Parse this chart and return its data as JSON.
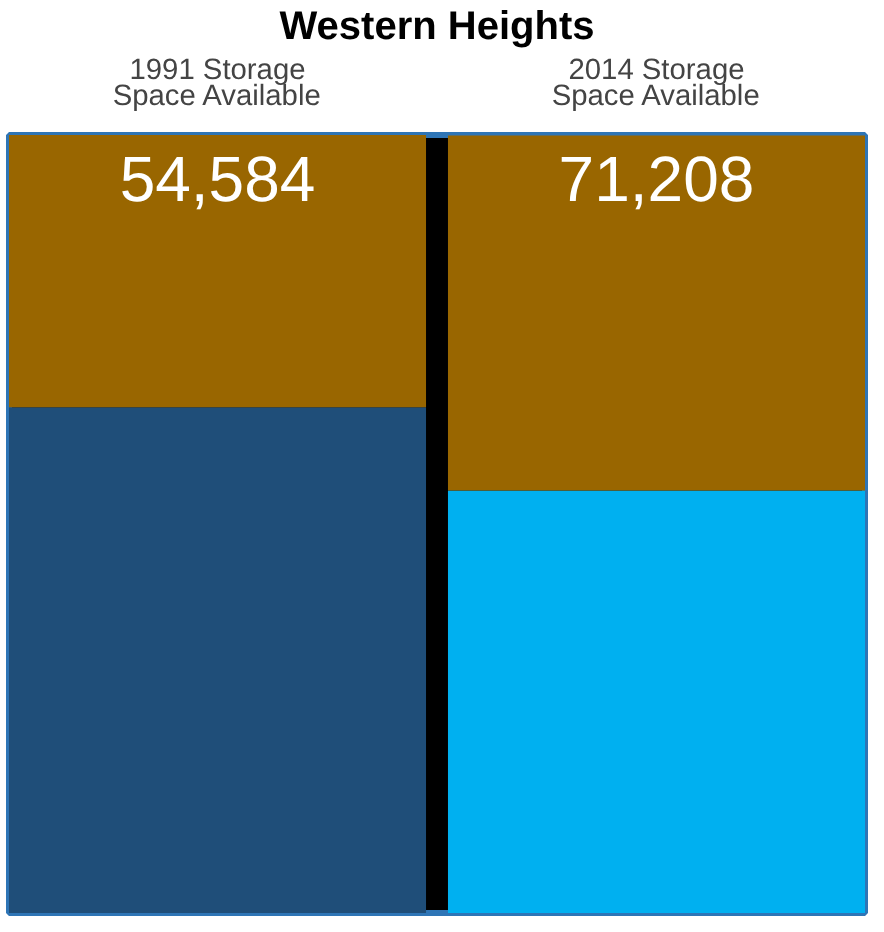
{
  "chart_data": {
    "type": "bar",
    "title": "Western Heights",
    "stacked": true,
    "ylim": [
      0,
      156000
    ],
    "tick_labels": "x",
    "categories": [
      "1991 Storage\nSpace Available",
      "2014 Storage\nSpace Available"
    ],
    "series": [
      {
        "colors": [
          "#1f4e79",
          "#00b0f0"
        ],
        "values": [
          101400,
          84700
        ]
      },
      {
        "color": "#996600",
        "values": [
          54584,
          71208
        ],
        "value_labels": [
          "54,584",
          "71,208"
        ]
      }
    ]
  }
}
